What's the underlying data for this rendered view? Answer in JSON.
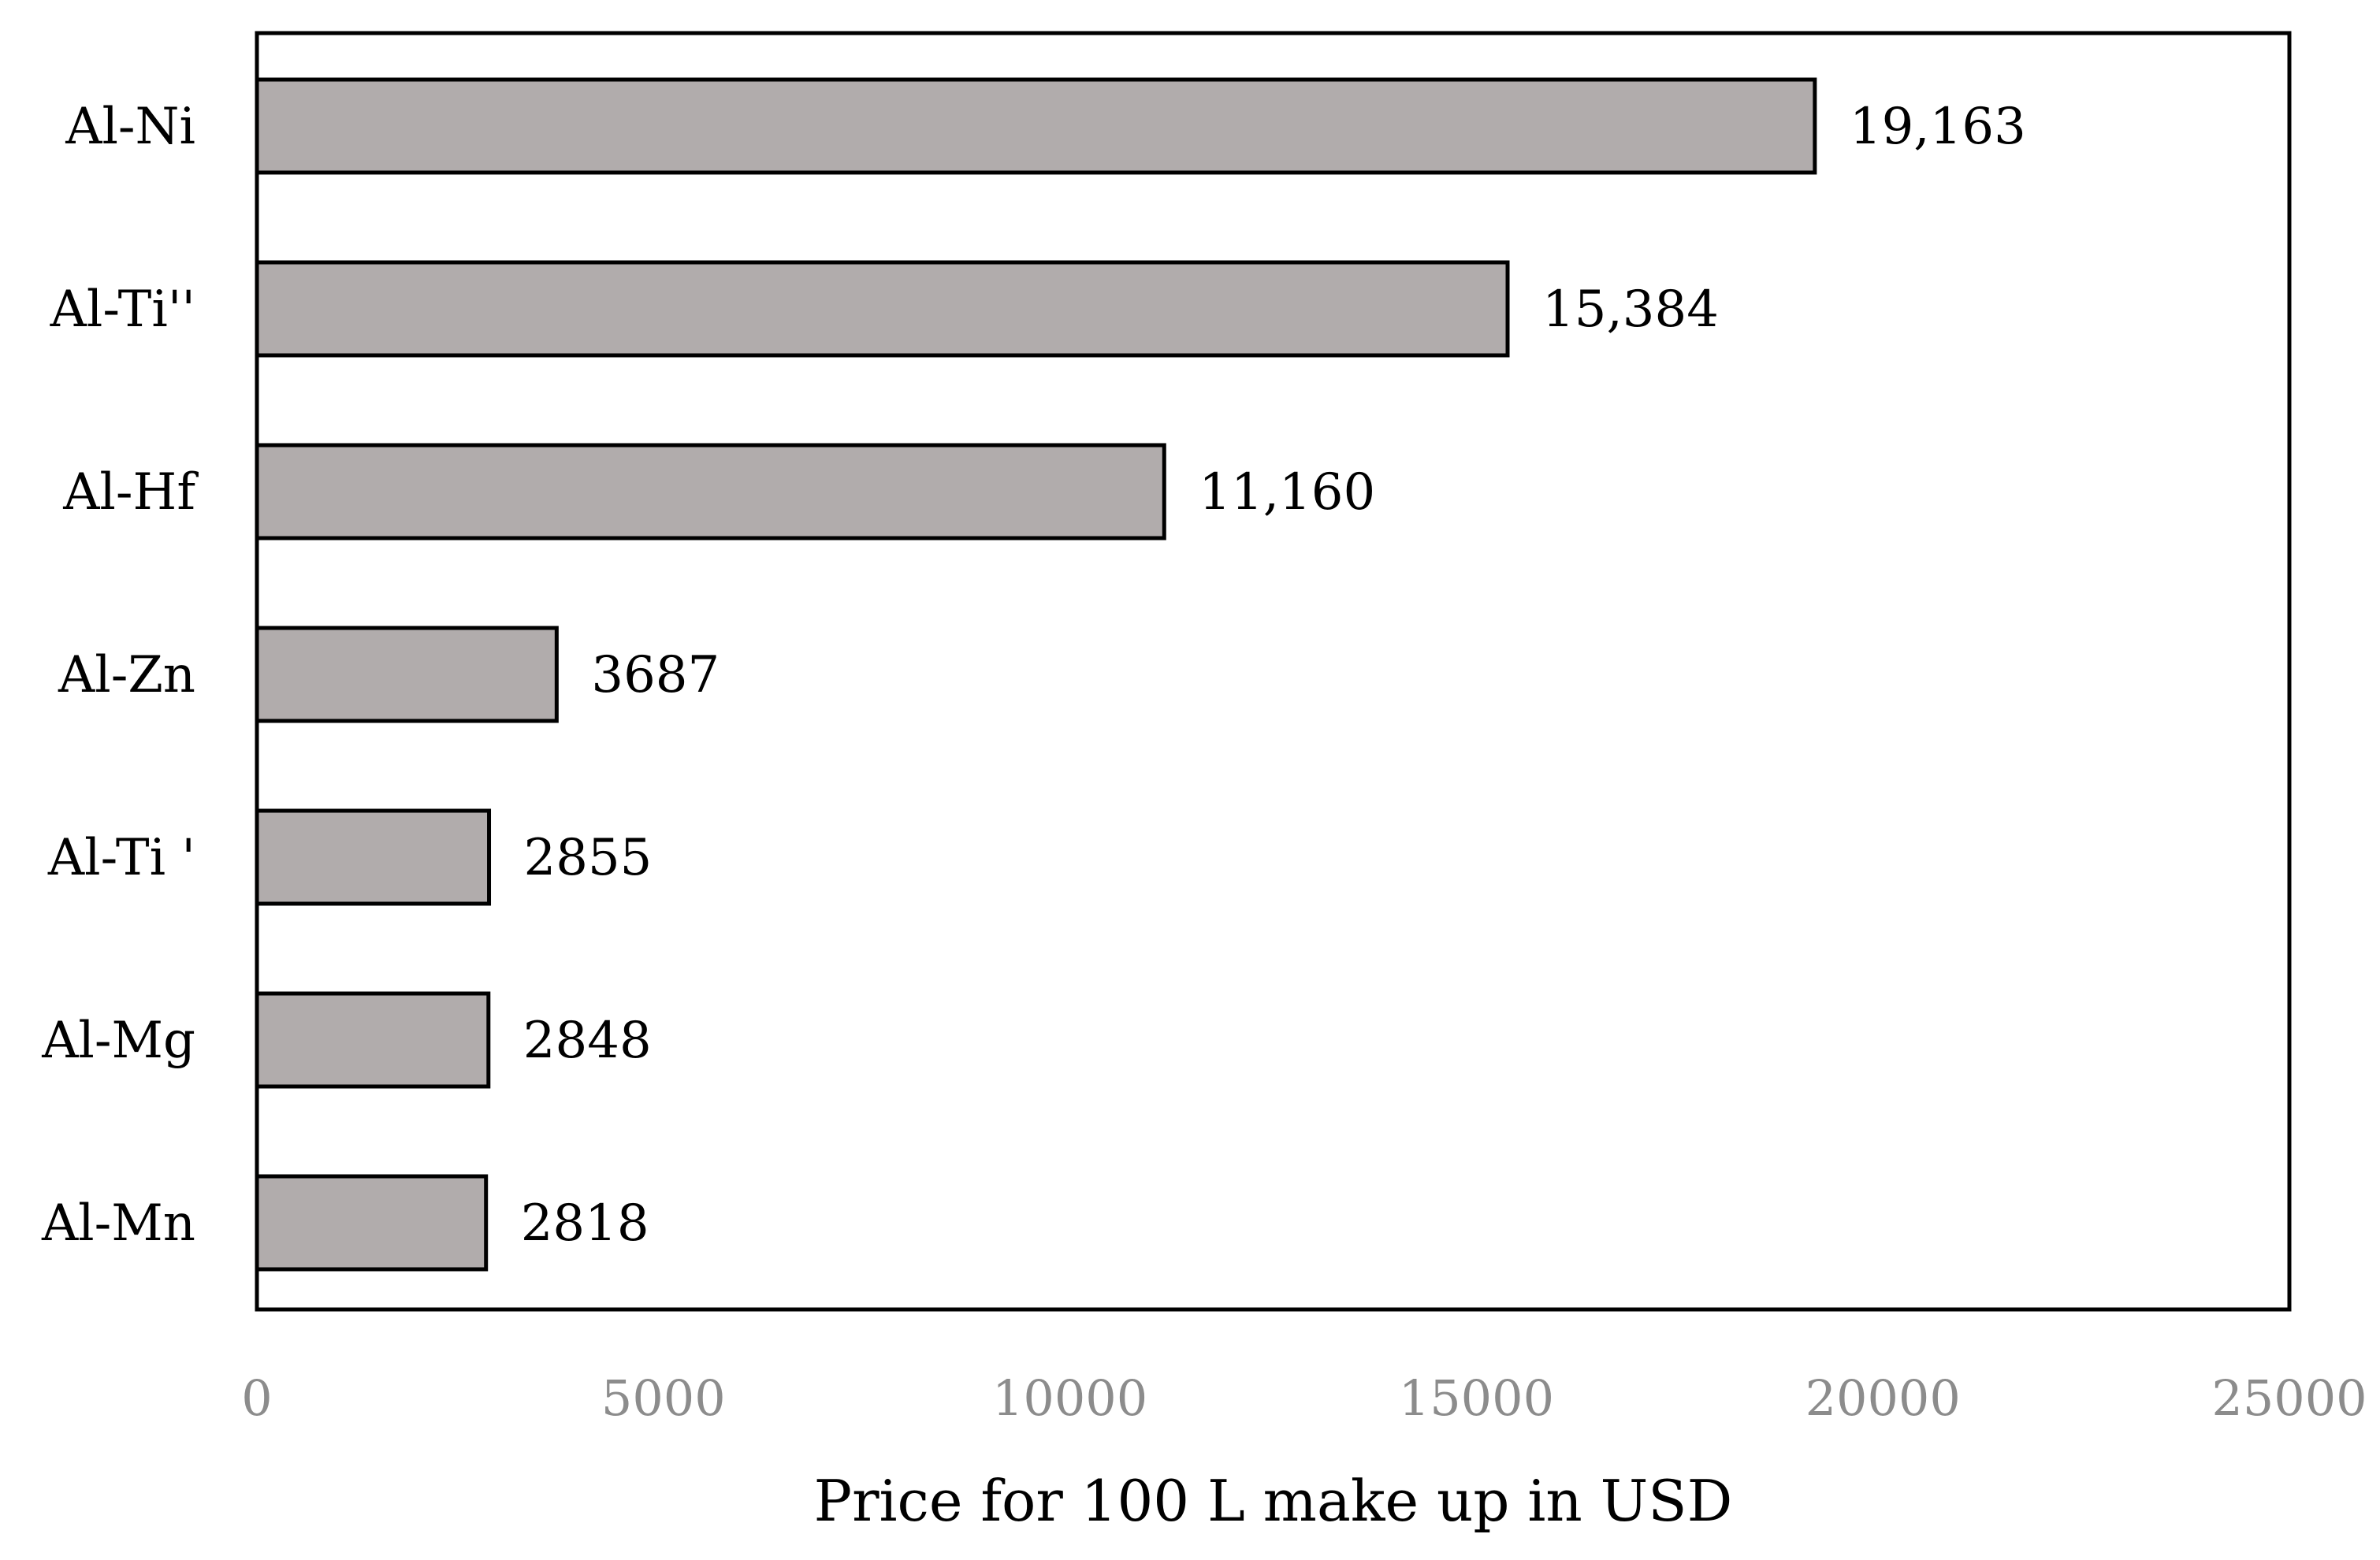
{
  "chart_data": {
    "type": "bar",
    "orientation": "horizontal",
    "categories": [
      "Al-Ni",
      "Al-Ti''",
      "Al-Hf",
      "Al-Zn",
      "Al-Ti '",
      "Al-Mg",
      "Al-Mn"
    ],
    "values": [
      19163,
      15384,
      11160,
      3687,
      2855,
      2848,
      2818
    ],
    "value_labels": [
      "19,163",
      "15,384",
      "11,160",
      "3687",
      "2855",
      "2848",
      "2818"
    ],
    "title": "",
    "xlabel": "Price for 100 L make up in USD",
    "ylabel": "",
    "xlim": [
      0,
      25000
    ],
    "x_ticks": [
      0,
      5000,
      10000,
      15000,
      20000,
      25000
    ],
    "x_tick_labels": [
      "0",
      "5000",
      "10000",
      "15000",
      "20000",
      "25000"
    ],
    "grid": false,
    "legend": "none",
    "colors": {
      "bar_fill": "#b1acac",
      "bar_stroke": "#000000",
      "frame": "#000000",
      "tick_text": "#8c8c8c",
      "text": "#000000"
    }
  }
}
